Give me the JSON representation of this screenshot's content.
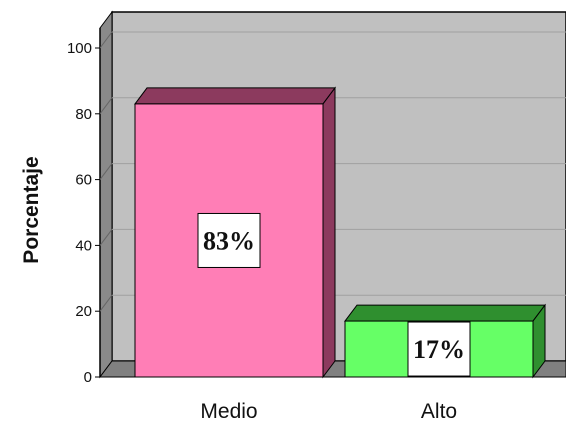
{
  "chart_data": {
    "type": "bar",
    "categories": [
      "Medio",
      "Alto"
    ],
    "values": [
      83,
      17
    ],
    "data_labels": [
      "83%",
      "17%"
    ],
    "ylabel": "Porcentaje",
    "ylim": [
      0,
      100
    ],
    "yticks": [
      "0",
      "20",
      "40",
      "60",
      "80",
      "100"
    ],
    "grid": true,
    "three_d": true,
    "colors": {
      "background_wall": "#c0c0c0",
      "floor": "#808080",
      "gridline": "#a0a0a0",
      "bar_medio": "#ff7eb6",
      "bar_medio_side": "#8c3a5e",
      "bar_alto": "#66ff66",
      "bar_alto_side": "#2f8f2f"
    }
  }
}
